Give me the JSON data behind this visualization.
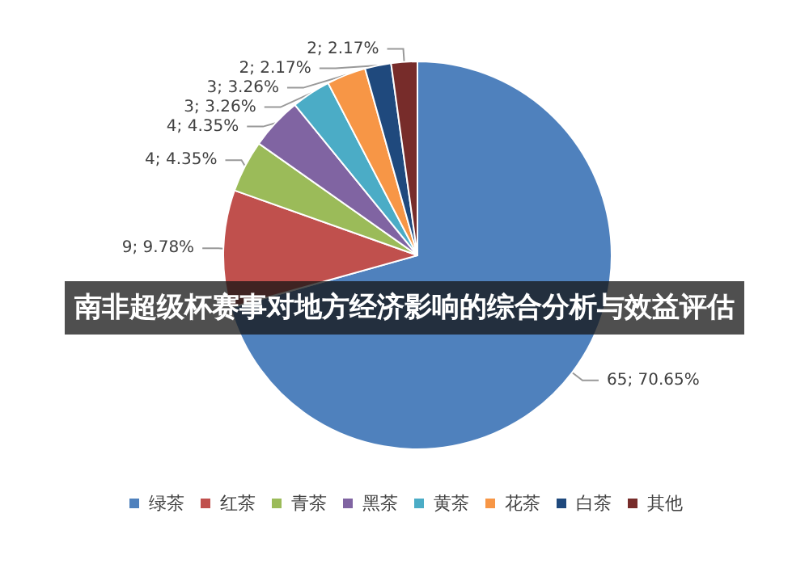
{
  "chart_data": {
    "type": "pie",
    "title": "南非超级杯赛事对地方经济影响的综合分析与效益评估",
    "categories": [
      "绿茶",
      "红茶",
      "青茶",
      "黑茶",
      "黄茶",
      "花茶",
      "白茶",
      "其他"
    ],
    "values": [
      65,
      9,
      4,
      4,
      3,
      3,
      2,
      2
    ],
    "colors": [
      "#4f81bd",
      "#c0504d",
      "#9bbb59",
      "#8064a2",
      "#4bacc6",
      "#f79646",
      "#1f497d",
      "#772c2a"
    ],
    "value_labels": [
      "65; 70.65%",
      "9; 9.78%",
      "4; 4.35%",
      "4; 4.35%",
      "3; 3.26%",
      "3; 3.26%",
      "2; 2.17%",
      "2; 2.17%"
    ],
    "legend": "bottom"
  }
}
